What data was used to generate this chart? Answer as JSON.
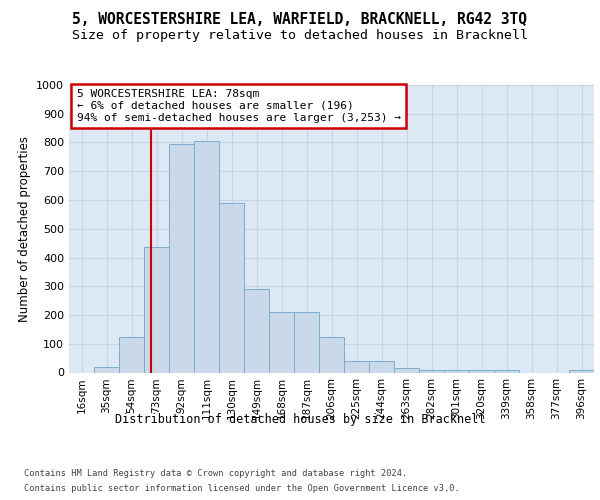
{
  "title": "5, WORCESTERSHIRE LEA, WARFIELD, BRACKNELL, RG42 3TQ",
  "subtitle": "Size of property relative to detached houses in Bracknell",
  "xlabel_bottom": "Distribution of detached houses by size in Bracknell",
  "ylabel": "Number of detached properties",
  "footer_line1": "Contains HM Land Registry data © Crown copyright and database right 2024.",
  "footer_line2": "Contains public sector information licensed under the Open Government Licence v3.0.",
  "bin_labels": [
    "16sqm",
    "35sqm",
    "54sqm",
    "73sqm",
    "92sqm",
    "111sqm",
    "130sqm",
    "149sqm",
    "168sqm",
    "187sqm",
    "206sqm",
    "225sqm",
    "244sqm",
    "263sqm",
    "282sqm",
    "301sqm",
    "320sqm",
    "339sqm",
    "358sqm",
    "377sqm",
    "396sqm"
  ],
  "bar_heights": [
    0,
    20,
    125,
    435,
    795,
    805,
    590,
    290,
    210,
    210,
    125,
    40,
    40,
    15,
    10,
    10,
    10,
    10,
    0,
    0,
    10
  ],
  "bar_color": "#c9d9ea",
  "bar_edge_color": "#7aadcc",
  "property_value": 78,
  "property_label": "5 WORCESTERSHIRE LEA: 78sqm",
  "annotation_line1": "← 6% of detached houses are smaller (196)",
  "annotation_line2": "94% of semi-detached houses are larger (3,253) →",
  "vline_color": "#cc0000",
  "annotation_box_edge_color": "#cc0000",
  "annotation_box_bg": "#ffffff",
  "ylim": [
    0,
    1000
  ],
  "yticks": [
    0,
    100,
    200,
    300,
    400,
    500,
    600,
    700,
    800,
    900,
    1000
  ],
  "grid_color": "#c8d4e4",
  "background_color": "#dce8f4",
  "title_fontsize": 10.5,
  "subtitle_fontsize": 9.5
}
